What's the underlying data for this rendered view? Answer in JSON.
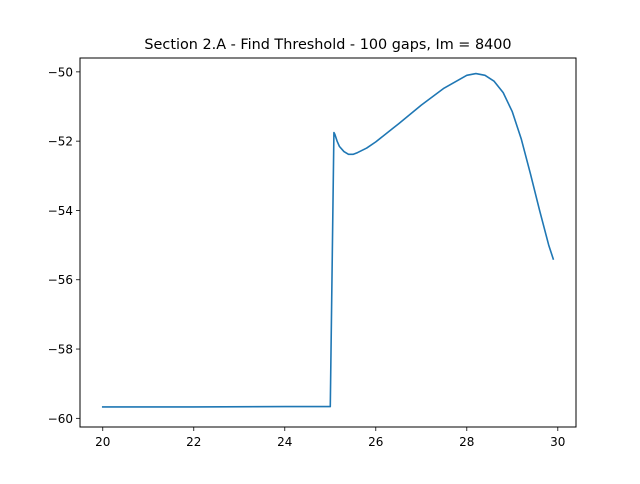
{
  "chart_data": {
    "type": "line",
    "title": "Section 2.A - Find Threshold - 100 gaps, Im = 8400",
    "xlabel": "",
    "ylabel": "",
    "xlim": [
      19.5,
      30.4
    ],
    "ylim": [
      -60.25,
      -49.6
    ],
    "xticks": [
      20,
      22,
      24,
      26,
      28,
      30
    ],
    "yticks": [
      -60,
      -58,
      -56,
      -54,
      -52,
      -50
    ],
    "xtick_labels": [
      "20",
      "22",
      "24",
      "26",
      "28",
      "30"
    ],
    "ytick_labels": [
      "−60",
      "−58",
      "−56",
      "−54",
      "−52",
      "−50"
    ],
    "grid": false,
    "legend": "none",
    "series": [
      {
        "color": "#1f77b4",
        "x": [
          20.0,
          22.0,
          24.0,
          25.0,
          25.08,
          25.1,
          25.15,
          25.2,
          25.3,
          25.4,
          25.5,
          25.6,
          25.8,
          26.0,
          26.5,
          27.0,
          27.5,
          28.0,
          28.2,
          28.4,
          28.6,
          28.8,
          29.0,
          29.2,
          29.4,
          29.6,
          29.8,
          29.9
        ],
        "y": [
          -59.67,
          -59.67,
          -59.66,
          -59.66,
          -51.75,
          -51.8,
          -52.0,
          -52.15,
          -52.3,
          -52.38,
          -52.38,
          -52.33,
          -52.2,
          -52.02,
          -51.5,
          -50.96,
          -50.47,
          -50.1,
          -50.05,
          -50.1,
          -50.27,
          -50.6,
          -51.15,
          -51.95,
          -52.95,
          -54.0,
          -55.0,
          -55.4
        ]
      }
    ]
  }
}
